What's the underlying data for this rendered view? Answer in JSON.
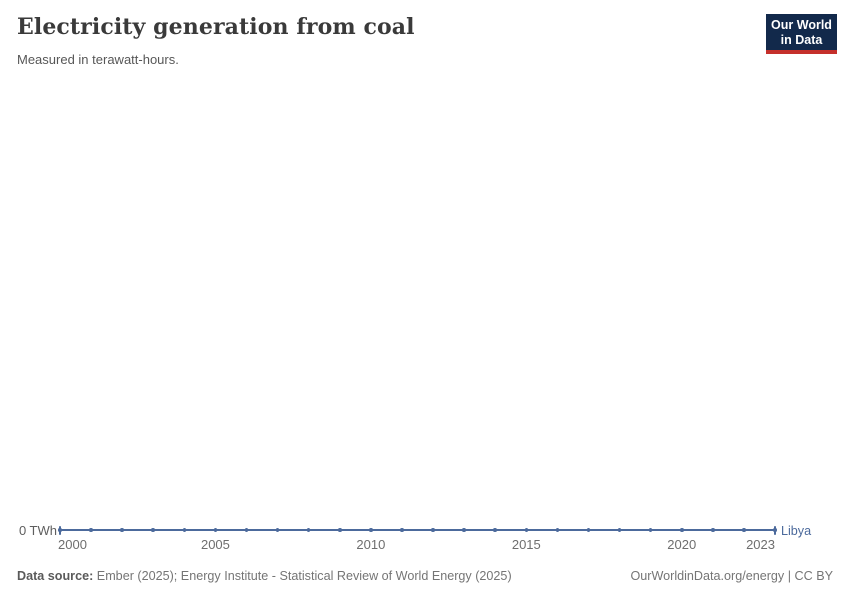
{
  "header": {
    "title": "Electricity generation from coal",
    "subtitle": "Measured in terawatt-hours.",
    "logo_line1": "Our World",
    "logo_line2": "in Data"
  },
  "chart_data": {
    "type": "line",
    "title": "Electricity generation from coal",
    "unit": "TWh",
    "x": [
      2000,
      2001,
      2002,
      2003,
      2004,
      2005,
      2006,
      2007,
      2008,
      2009,
      2010,
      2011,
      2012,
      2013,
      2014,
      2015,
      2016,
      2017,
      2018,
      2019,
      2020,
      2021,
      2022,
      2023
    ],
    "series": [
      {
        "name": "Libya",
        "color": "#4C6A9C",
        "values": [
          0,
          0,
          0,
          0,
          0,
          0,
          0,
          0,
          0,
          0,
          0,
          0,
          0,
          0,
          0,
          0,
          0,
          0,
          0,
          0,
          0,
          0,
          0,
          0
        ]
      }
    ],
    "x_ticks": [
      "2000",
      "2005",
      "2010",
      "2015",
      "2020",
      "2023"
    ],
    "x_tick_years": [
      2000,
      2005,
      2010,
      2015,
      2020,
      2023
    ],
    "y_ticks": [
      {
        "value": 0,
        "label": "0 TWh"
      }
    ],
    "xlim": [
      2000,
      2023
    ],
    "ylim": [
      0,
      0
    ],
    "grid": false,
    "legend_position": "end-of-line"
  },
  "footer": {
    "source_label": "Data source:",
    "source_text": " Ember (2025); Energy Institute - Statistical Review of World Energy (2025)",
    "right_text": "OurWorldinData.org/energy | CC BY"
  },
  "colors": {
    "series_line": "#4C6A9C",
    "logo_background": "#12294b",
    "logo_accent": "#c5302b",
    "title_text": "#3a3a3a",
    "axis_text": "#6e6e6e"
  }
}
